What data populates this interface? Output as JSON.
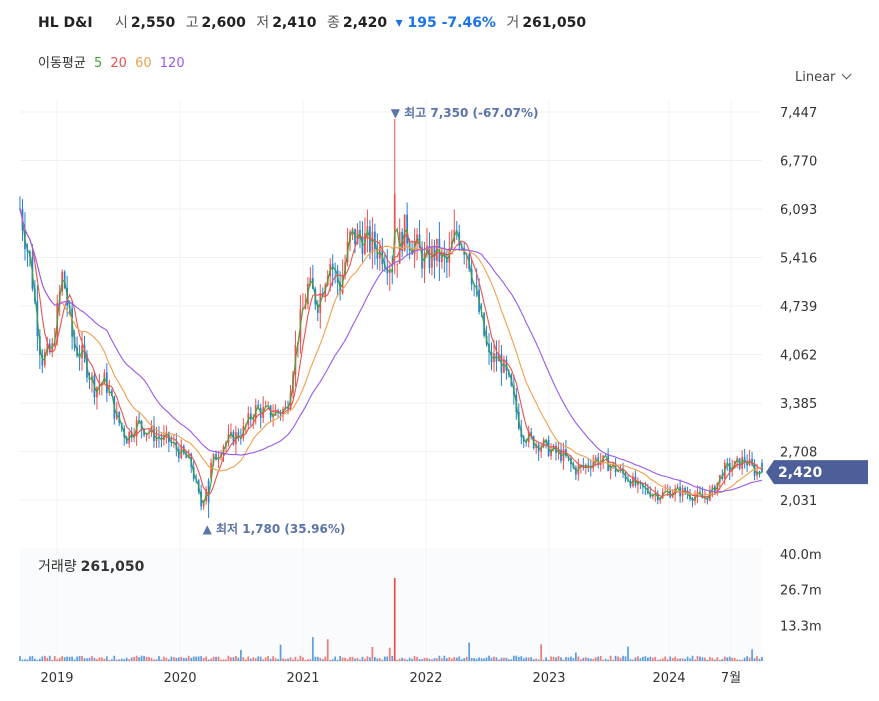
{
  "header": {
    "name": "HL D&I",
    "open_label": "시",
    "open": "2,550",
    "high_label": "고",
    "high": "2,600",
    "low_label": "저",
    "low": "2,410",
    "close_label": "종",
    "close": "2,420",
    "change": "▾ 195 -7.46%",
    "volume_label": "거",
    "volume": "261,050"
  },
  "moving_average": {
    "label": "이동평균",
    "periods": [
      {
        "value": "5",
        "color": "#3aa53a"
      },
      {
        "value": "20",
        "color": "#e8534f"
      },
      {
        "value": "60",
        "color": "#f0a04b"
      },
      {
        "value": "120",
        "color": "#9b59e8"
      }
    ]
  },
  "scale_button": "Linear",
  "volume_panel": {
    "label": "거래량",
    "value": "261,050"
  },
  "colors": {
    "up": "#e8534f",
    "down": "#2a7fd4",
    "label_blue": "#5b74a8",
    "last_price_bg": "#4c5f99"
  },
  "chart_data": {
    "type": "candlestick",
    "x_ticks": [
      "2019",
      "2020",
      "2021",
      "2022",
      "2023",
      "2024",
      "7월"
    ],
    "y_ticks": [
      "7,447",
      "6,770",
      "6,093",
      "5,416",
      "4,739",
      "4,062",
      "3,385",
      "2,708",
      "2,031"
    ],
    "y_range": [
      2031,
      7447
    ],
    "volume_ticks": [
      "40.0m",
      "26.7m",
      "13.3m"
    ],
    "volume_range": [
      0,
      40
    ],
    "annotations": {
      "high": "▼ 최고 7,350 (-67.07%)",
      "low": "▲ 최저 1,780 (35.96%)",
      "last_price": "2,420"
    },
    "series_close": [
      [
        "2018-10",
        6100
      ],
      [
        "2018-11",
        5300
      ],
      [
        "2018-12",
        4000
      ],
      [
        "2019-01",
        4100
      ],
      [
        "2019-02",
        5200
      ],
      [
        "2019-03",
        4200
      ],
      [
        "2019-04",
        4000
      ],
      [
        "2019-05",
        3600
      ],
      [
        "2019-06",
        3700
      ],
      [
        "2019-07",
        3200
      ],
      [
        "2019-08",
        2900
      ],
      [
        "2019-09",
        3100
      ],
      [
        "2019-10",
        3000
      ],
      [
        "2019-11",
        2900
      ],
      [
        "2019-12",
        2850
      ],
      [
        "2020-01",
        2700
      ],
      [
        "2020-02",
        2550
      ],
      [
        "2020-03",
        1950
      ],
      [
        "2020-04",
        2550
      ],
      [
        "2020-05",
        2800
      ],
      [
        "2020-06",
        2900
      ],
      [
        "2020-07",
        3000
      ],
      [
        "2020-08",
        3300
      ],
      [
        "2020-09",
        3250
      ],
      [
        "2020-10",
        3250
      ],
      [
        "2020-11",
        3300
      ],
      [
        "2020-12",
        4300
      ],
      [
        "2021-01",
        5000
      ],
      [
        "2021-02",
        4800
      ],
      [
        "2021-03",
        5400
      ],
      [
        "2021-04",
        5000
      ],
      [
        "2021-05",
        5700
      ],
      [
        "2021-06",
        5700
      ],
      [
        "2021-07",
        5600
      ],
      [
        "2021-08",
        5500
      ],
      [
        "2021-09",
        5300
      ],
      [
        "2021-10",
        5800
      ],
      [
        "2021-11",
        5600
      ],
      [
        "2021-12",
        5350
      ],
      [
        "2022-01",
        5500
      ],
      [
        "2022-02",
        5300
      ],
      [
        "2022-03",
        5800
      ],
      [
        "2022-04",
        5500
      ],
      [
        "2022-05",
        4700
      ],
      [
        "2022-06",
        4000
      ],
      [
        "2022-07",
        4000
      ],
      [
        "2022-08",
        3600
      ],
      [
        "2022-09",
        3000
      ],
      [
        "2022-10",
        2850
      ],
      [
        "2022-11",
        2800
      ],
      [
        "2022-12",
        2700
      ],
      [
        "2023-01",
        2650
      ],
      [
        "2023-02",
        2450
      ],
      [
        "2023-03",
        2500
      ],
      [
        "2023-04",
        2600
      ],
      [
        "2023-05",
        2550
      ],
      [
        "2023-06",
        2450
      ],
      [
        "2023-07",
        2350
      ],
      [
        "2023-08",
        2200
      ],
      [
        "2023-09",
        2150
      ],
      [
        "2023-10",
        2100
      ],
      [
        "2023-11",
        2150
      ],
      [
        "2023-12",
        2150
      ],
      [
        "2024-01",
        2100
      ],
      [
        "2024-02",
        2050
      ],
      [
        "2024-03",
        2150
      ],
      [
        "2024-04",
        2450
      ],
      [
        "2024-05",
        2500
      ],
      [
        "2024-06",
        2600
      ],
      [
        "2024-07",
        2420
      ]
    ],
    "series_high": 7350,
    "series_low": 1780,
    "volume_peak": "2021-09"
  }
}
